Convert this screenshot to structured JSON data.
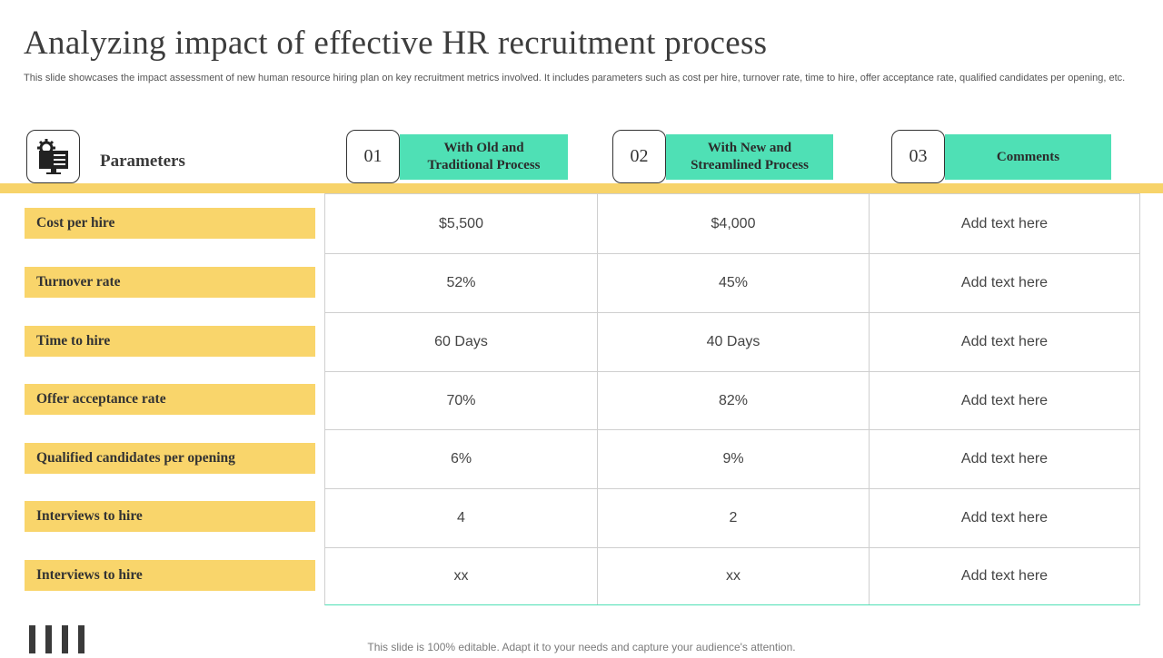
{
  "title": "Analyzing impact of effective HR recruitment process",
  "subtitle": "This slide showcases the impact assessment of new human resource hiring plan on key recruitment metrics involved. It includes parameters such as cost per hire, turnover rate, time to hire, offer acceptance rate, qualified candidates per opening, etc.",
  "parameters_header": {
    "label": "Parameters",
    "icon": "computer-gear-icon"
  },
  "columns": [
    {
      "num": "01",
      "label_line1": "With Old and",
      "label_line2": "Traditional Process"
    },
    {
      "num": "02",
      "label_line1": "With New and",
      "label_line2": "Streamlined Process"
    },
    {
      "num": "03",
      "label_line1": "Comments",
      "label_line2": ""
    }
  ],
  "rows": [
    {
      "label": "Cost per hire",
      "old": "$5,500",
      "new": "$4,000",
      "comment": "Add text here"
    },
    {
      "label": "Turnover rate",
      "old": "52%",
      "new": "45%",
      "comment": "Add text here"
    },
    {
      "label": "Time to hire",
      "old": "60 Days",
      "new": "40 Days",
      "comment": "Add text here"
    },
    {
      "label": "Offer acceptance rate",
      "old": "70%",
      "new": "82%",
      "comment": "Add text here"
    },
    {
      "label": "Qualified candidates per opening",
      "old": "6%",
      "new": "9%",
      "comment": "Add text here"
    },
    {
      "label": "Interviews to hire",
      "old": "4",
      "new": "2",
      "comment": "Add text here"
    },
    {
      "label": "Interviews to hire",
      "old": "xx",
      "new": "xx",
      "comment": "Add text here"
    }
  ],
  "footer": "This slide is 100% editable. Adapt it to your needs and capture your audience's attention.",
  "colors": {
    "teal": "#4fe0b5",
    "yellow": "#f9d56b"
  }
}
